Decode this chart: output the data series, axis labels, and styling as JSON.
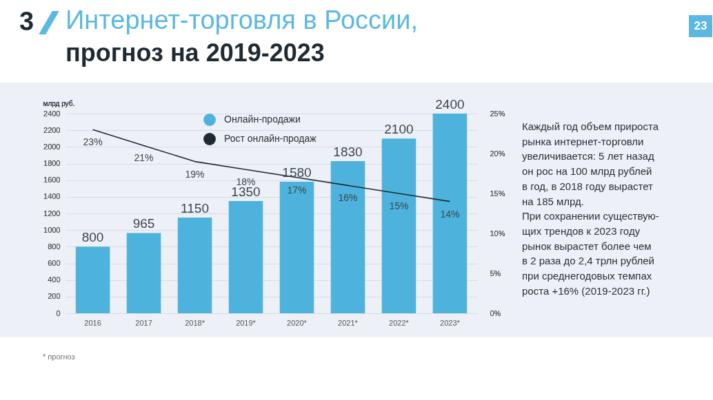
{
  "chart_data": {
    "type": "bar",
    "title": "Интернет-торговля в России,",
    "subtitle": "прогноз на 2019-2023",
    "ylabel": "млрд руб.",
    "categories": [
      "2016",
      "2017",
      "2018*",
      "2019*",
      "2020*",
      "2021*",
      "2022*",
      "2023*"
    ],
    "series": [
      {
        "name": "Онлайн-продажи",
        "color": "#4eb3dc",
        "values": [
          800,
          965,
          1150,
          1350,
          1580,
          1830,
          2100,
          2400
        ],
        "value_labels": [
          "800",
          "965",
          "1150",
          "1350",
          "1580",
          "1830",
          "2100",
          "2400"
        ]
      },
      {
        "name": "Рост онлайн-продаж",
        "type": "line",
        "axis": "y2",
        "color": "#1f2a33",
        "values": [
          23,
          21,
          19,
          18,
          17,
          16,
          15,
          14
        ],
        "value_labels": [
          "23%",
          "21%",
          "19%",
          "18%",
          "17%",
          "16%",
          "15%",
          "14%"
        ]
      }
    ],
    "ylim": [
      0,
      2400
    ],
    "yticks": [
      0,
      200,
      400,
      600,
      800,
      1000,
      1200,
      1400,
      1600,
      1800,
      2000,
      2200,
      2400
    ],
    "y2lim": [
      0,
      25
    ],
    "y2ticks": [
      {
        "value": 0,
        "label": "0%"
      },
      {
        "value": 5,
        "label": "5%"
      },
      {
        "value": 10,
        "label": "10%"
      },
      {
        "value": 15,
        "label": "15%"
      },
      {
        "value": 20,
        "label": "20%"
      },
      {
        "value": 25,
        "label": "25%"
      }
    ],
    "grid": "y",
    "legend": "top",
    "marker": "none",
    "line_style": "solid",
    "annotations": [
      "3",
      "23",
      "Каждый год объем прироста\nрынка интернет-торговли\nувеличивается: 5 лет назад\nон рос на 100 млрд рублей\nв год, в 2018 году вырастет\nна 185 млрд.\nПри сохранении существую-\nщих трендов  к 2023 году\nрынок вырастет более чем\nв 2 раза до  2,4 трлн рублей\nпри среднегодовых темпах\nроста +16% (2019-2023 гг.)",
      "* прогноз"
    ]
  }
}
